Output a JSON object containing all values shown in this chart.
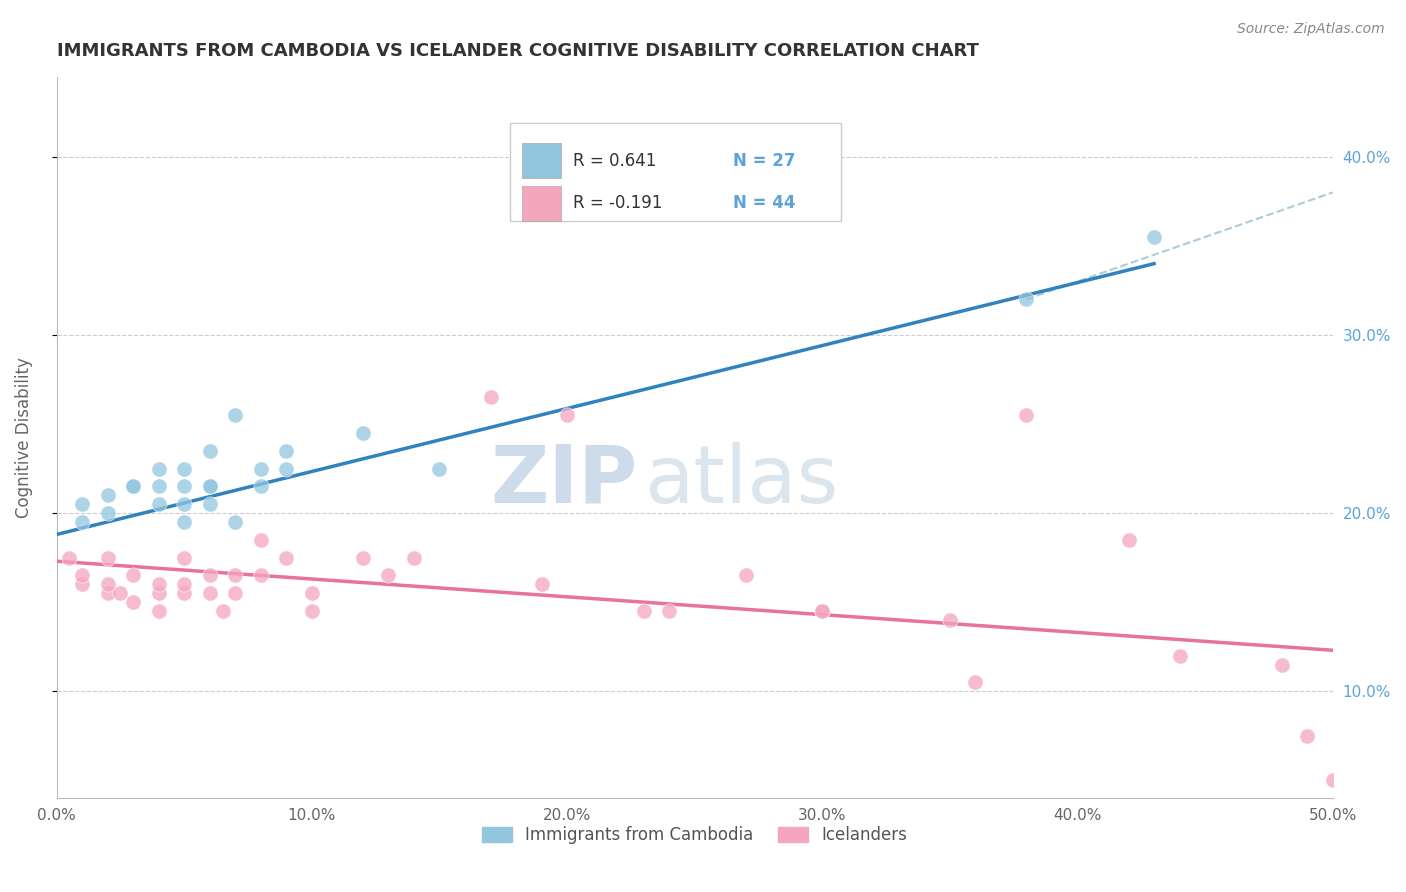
{
  "title": "IMMIGRANTS FROM CAMBODIA VS ICELANDER COGNITIVE DISABILITY CORRELATION CHART",
  "source_text": "Source: ZipAtlas.com",
  "ylabel": "Cognitive Disability",
  "watermark_zip": "ZIP",
  "watermark_atlas": "atlas",
  "xlim": [
    0.0,
    0.5
  ],
  "ylim": [
    0.04,
    0.445
  ],
  "xticks": [
    0.0,
    0.1,
    0.2,
    0.3,
    0.4,
    0.5
  ],
  "xticklabels": [
    "0.0%",
    "10.0%",
    "20.0%",
    "30.0%",
    "40.0%",
    "50.0%"
  ],
  "ytick_positions": [
    0.1,
    0.2,
    0.3,
    0.4
  ],
  "yticklabels": [
    "10.0%",
    "20.0%",
    "30.0%",
    "40.0%"
  ],
  "legend1_R": "R = 0.641",
  "legend1_N": "N = 27",
  "legend2_R": "R = -0.191",
  "legend2_N": "N = 44",
  "legend1_label": "Immigrants from Cambodia",
  "legend2_label": "Icelanders",
  "blue_color": "#92c5de",
  "pink_color": "#f4a6be",
  "blue_line_color": "#3182bd",
  "pink_line_color": "#e8729a",
  "grid_color": "#cccccc",
  "title_color": "#333333",
  "right_axis_color": "#5ba3d9",
  "blue_scatter_x": [
    0.01,
    0.01,
    0.02,
    0.02,
    0.03,
    0.03,
    0.04,
    0.04,
    0.04,
    0.05,
    0.05,
    0.05,
    0.05,
    0.06,
    0.06,
    0.06,
    0.06,
    0.07,
    0.07,
    0.08,
    0.08,
    0.09,
    0.09,
    0.12,
    0.15,
    0.38,
    0.43
  ],
  "blue_scatter_y": [
    0.195,
    0.205,
    0.2,
    0.21,
    0.215,
    0.215,
    0.205,
    0.215,
    0.225,
    0.195,
    0.205,
    0.215,
    0.225,
    0.205,
    0.215,
    0.215,
    0.235,
    0.195,
    0.255,
    0.215,
    0.225,
    0.225,
    0.235,
    0.245,
    0.225,
    0.32,
    0.355
  ],
  "pink_scatter_x": [
    0.005,
    0.01,
    0.01,
    0.02,
    0.02,
    0.02,
    0.025,
    0.03,
    0.03,
    0.04,
    0.04,
    0.04,
    0.05,
    0.05,
    0.05,
    0.06,
    0.06,
    0.065,
    0.07,
    0.07,
    0.08,
    0.08,
    0.09,
    0.1,
    0.1,
    0.12,
    0.13,
    0.14,
    0.17,
    0.19,
    0.2,
    0.23,
    0.24,
    0.27,
    0.3,
    0.3,
    0.35,
    0.36,
    0.38,
    0.42,
    0.44,
    0.48,
    0.49,
    0.5
  ],
  "pink_scatter_y": [
    0.175,
    0.16,
    0.165,
    0.155,
    0.16,
    0.175,
    0.155,
    0.15,
    0.165,
    0.145,
    0.155,
    0.16,
    0.155,
    0.16,
    0.175,
    0.155,
    0.165,
    0.145,
    0.155,
    0.165,
    0.165,
    0.185,
    0.175,
    0.145,
    0.155,
    0.175,
    0.165,
    0.175,
    0.265,
    0.16,
    0.255,
    0.145,
    0.145,
    0.165,
    0.145,
    0.145,
    0.14,
    0.105,
    0.255,
    0.185,
    0.12,
    0.115,
    0.075,
    0.05
  ],
  "blue_trend_x": [
    0.0,
    0.43
  ],
  "blue_trend_y": [
    0.188,
    0.34
  ],
  "pink_trend_x": [
    0.0,
    0.5
  ],
  "pink_trend_y": [
    0.173,
    0.123
  ],
  "blue_ext_trend_x": [
    0.38,
    0.5
  ],
  "blue_ext_trend_y": [
    0.32,
    0.38
  ],
  "figsize": [
    14.06,
    8.92
  ],
  "dpi": 100
}
